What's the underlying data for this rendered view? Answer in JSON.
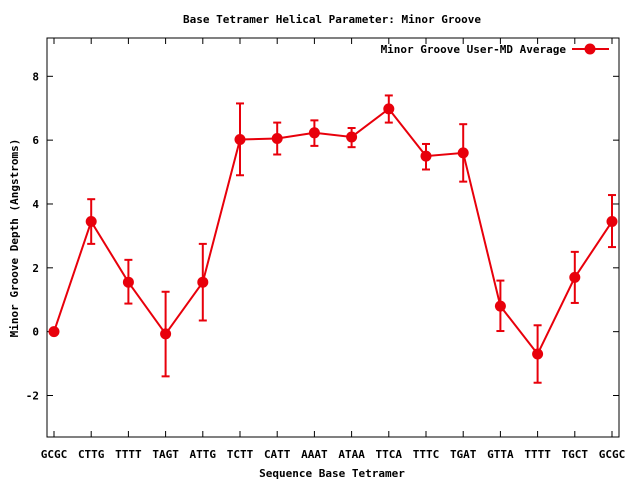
{
  "chart_data": {
    "type": "line",
    "title": "Base Tetramer Helical Parameter: Minor Groove",
    "xlabel": "Sequence Base Tetramer",
    "ylabel": "Minor Groove Depth (Angstroms)",
    "categories": [
      "GCGC",
      "CTTG",
      "TTTT",
      "TAGT",
      "ATTG",
      "TCTT",
      "CATT",
      "AAAT",
      "ATAA",
      "TTCA",
      "TTTC",
      "TGAT",
      "GTTA",
      "TTTT",
      "TGCT",
      "GCGC"
    ],
    "ylim": [
      -3.3,
      9.2
    ],
    "yticks": [
      -2,
      0,
      2,
      4,
      6,
      8
    ],
    "legend_position": "top-right",
    "series": [
      {
        "name": "Minor Groove User-MD Average",
        "color": "#e8000b",
        "values": [
          0.0,
          3.45,
          1.55,
          -0.07,
          1.55,
          6.02,
          6.05,
          6.23,
          6.1,
          6.98,
          5.5,
          5.6,
          0.8,
          -0.7,
          1.7,
          3.45
        ],
        "error_low": [
          0.0,
          2.75,
          0.88,
          -1.4,
          0.35,
          4.9,
          5.55,
          5.82,
          5.78,
          6.55,
          5.08,
          4.7,
          0.02,
          -1.6,
          0.9,
          2.65
        ],
        "error_high": [
          0.0,
          4.15,
          2.25,
          1.25,
          2.75,
          7.15,
          6.55,
          6.62,
          6.38,
          7.4,
          5.88,
          6.5,
          1.6,
          0.2,
          2.5,
          4.28
        ]
      }
    ]
  }
}
